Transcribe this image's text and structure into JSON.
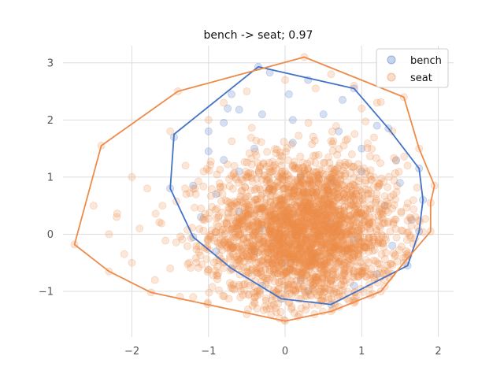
{
  "chart_data": {
    "type": "scatter",
    "title": "bench -> seat; 0.97",
    "xlabel": "",
    "ylabel": "",
    "xlim": [
      -2.9,
      2.2
    ],
    "ylim": [
      -1.8,
      3.3
    ],
    "x_ticks": [
      -2,
      -1,
      0,
      1,
      2
    ],
    "y_ticks": [
      -1,
      0,
      1,
      2,
      3
    ],
    "x_tick_labels": [
      "−2",
      "−1",
      "0",
      "1",
      "2"
    ],
    "y_tick_labels": [
      "−1",
      "0",
      "1",
      "2",
      "3"
    ],
    "grid": true,
    "legend_position": "top-right",
    "series": [
      {
        "name": "bench",
        "color": "#4472c4",
        "hull": [
          [
            -0.35,
            2.93
          ],
          [
            0.9,
            2.55
          ],
          [
            1.35,
            1.85
          ],
          [
            1.75,
            1.15
          ],
          [
            1.8,
            0.6
          ],
          [
            1.75,
            0.05
          ],
          [
            1.6,
            -0.55
          ],
          [
            0.6,
            -1.23
          ],
          [
            -0.05,
            -1.13
          ],
          [
            -0.7,
            -0.6
          ],
          [
            -1.2,
            -0.05
          ],
          [
            -1.5,
            0.8
          ],
          [
            -1.45,
            1.75
          ]
        ],
        "points": [
          [
            -0.35,
            2.93
          ],
          [
            -0.2,
            2.83
          ],
          [
            0.05,
            2.45
          ],
          [
            0.3,
            2.7
          ],
          [
            0.9,
            2.55
          ],
          [
            -0.7,
            2.45
          ],
          [
            -0.75,
            2.2
          ],
          [
            -0.6,
            2.18
          ],
          [
            -0.8,
            1.95
          ],
          [
            -1.0,
            1.8
          ],
          [
            -1.45,
            1.7
          ],
          [
            -1.0,
            1.45
          ],
          [
            -0.6,
            1.1
          ],
          [
            -0.4,
            1.5
          ],
          [
            0.1,
            1.6
          ],
          [
            0.5,
            2.1
          ],
          [
            0.75,
            2.35
          ],
          [
            1.2,
            1.9
          ],
          [
            1.35,
            1.85
          ],
          [
            1.0,
            1.5
          ],
          [
            1.45,
            1.3
          ],
          [
            1.75,
            1.15
          ],
          [
            1.5,
            0.9
          ],
          [
            1.8,
            0.6
          ],
          [
            1.3,
            0.5
          ],
          [
            1.65,
            0.25
          ],
          [
            1.75,
            0.05
          ],
          [
            1.4,
            -0.2
          ],
          [
            1.6,
            -0.55
          ],
          [
            1.2,
            -0.7
          ],
          [
            0.9,
            -0.9
          ],
          [
            0.6,
            -1.23
          ],
          [
            0.3,
            -1.0
          ],
          [
            -0.05,
            -1.13
          ],
          [
            -0.3,
            -0.9
          ],
          [
            -0.7,
            -0.6
          ],
          [
            -0.9,
            -0.3
          ],
          [
            -1.2,
            -0.05
          ],
          [
            -1.1,
            0.3
          ],
          [
            -1.5,
            0.8
          ],
          [
            -1.2,
            0.85
          ],
          [
            -0.9,
            0.7
          ],
          [
            -0.6,
            0.4
          ],
          [
            -0.3,
            0.1
          ],
          [
            0.0,
            0.3
          ],
          [
            0.3,
            0.5
          ],
          [
            0.6,
            0.2
          ],
          [
            0.9,
            -0.1
          ],
          [
            0.4,
            -0.4
          ],
          [
            0.0,
            -0.5
          ],
          [
            -0.4,
            -0.3
          ],
          [
            -0.2,
            0.8
          ],
          [
            0.2,
            1.0
          ],
          [
            0.6,
            0.9
          ],
          [
            -0.8,
            1.3
          ],
          [
            0.1,
            2.0
          ],
          [
            0.7,
            1.8
          ],
          [
            -0.3,
            2.1
          ],
          [
            1.0,
            1.1
          ],
          [
            0.2,
            -0.8
          ]
        ]
      },
      {
        "name": "seat",
        "color": "#ed8b4b",
        "hull": [
          [
            0.25,
            3.1
          ],
          [
            1.55,
            2.4
          ],
          [
            1.75,
            1.5
          ],
          [
            1.95,
            0.85
          ],
          [
            1.9,
            0.55
          ],
          [
            1.9,
            0.05
          ],
          [
            1.55,
            -0.5
          ],
          [
            1.25,
            -1.0
          ],
          [
            0.6,
            -1.35
          ],
          [
            0.0,
            -1.52
          ],
          [
            -1.75,
            -1.02
          ],
          [
            -2.3,
            -0.65
          ],
          [
            -2.75,
            -0.18
          ],
          [
            -2.4,
            1.55
          ],
          [
            -1.4,
            2.5
          ]
        ],
        "cloud": {
          "count": 2600,
          "center": [
            0.25,
            0.05
          ],
          "sd": [
            0.55,
            0.6
          ]
        },
        "points": [
          [
            0.25,
            3.1
          ],
          [
            1.55,
            2.4
          ],
          [
            1.75,
            1.5
          ],
          [
            1.95,
            0.85
          ],
          [
            1.9,
            0.55
          ],
          [
            1.9,
            0.05
          ],
          [
            1.55,
            -0.5
          ],
          [
            1.25,
            -1.0
          ],
          [
            0.6,
            -1.35
          ],
          [
            0.0,
            -1.52
          ],
          [
            -1.75,
            -1.02
          ],
          [
            -2.3,
            -0.65
          ],
          [
            -2.75,
            -0.18
          ],
          [
            -2.4,
            1.55
          ],
          [
            -1.4,
            2.5
          ],
          [
            -2.1,
            -0.35
          ],
          [
            -1.9,
            0.1
          ],
          [
            -2.2,
            0.3
          ],
          [
            -1.6,
            0.5
          ],
          [
            -1.8,
            0.8
          ],
          [
            -1.3,
            1.2
          ],
          [
            -1.0,
            2.0
          ],
          [
            -0.5,
            2.5
          ],
          [
            0.6,
            2.8
          ],
          [
            1.0,
            2.2
          ],
          [
            1.4,
            1.8
          ],
          [
            1.6,
            1.2
          ],
          [
            1.7,
            0.3
          ],
          [
            1.3,
            -0.8
          ],
          [
            0.9,
            -1.2
          ],
          [
            -0.5,
            -1.4
          ],
          [
            -1.2,
            -1.1
          ],
          [
            -1.5,
            -0.6
          ],
          [
            -1.7,
            -0.8
          ],
          [
            -2.0,
            -0.5
          ],
          [
            -2.3,
            0.0
          ],
          [
            -2.5,
            0.5
          ],
          [
            -2.0,
            1.0
          ],
          [
            -1.5,
            1.8
          ],
          [
            -0.8,
            2.3
          ],
          [
            0.0,
            2.7
          ],
          [
            0.4,
            2.55
          ],
          [
            0.9,
            2.6
          ],
          [
            1.2,
            2.3
          ],
          [
            -0.2,
            -1.3
          ]
        ]
      }
    ]
  }
}
